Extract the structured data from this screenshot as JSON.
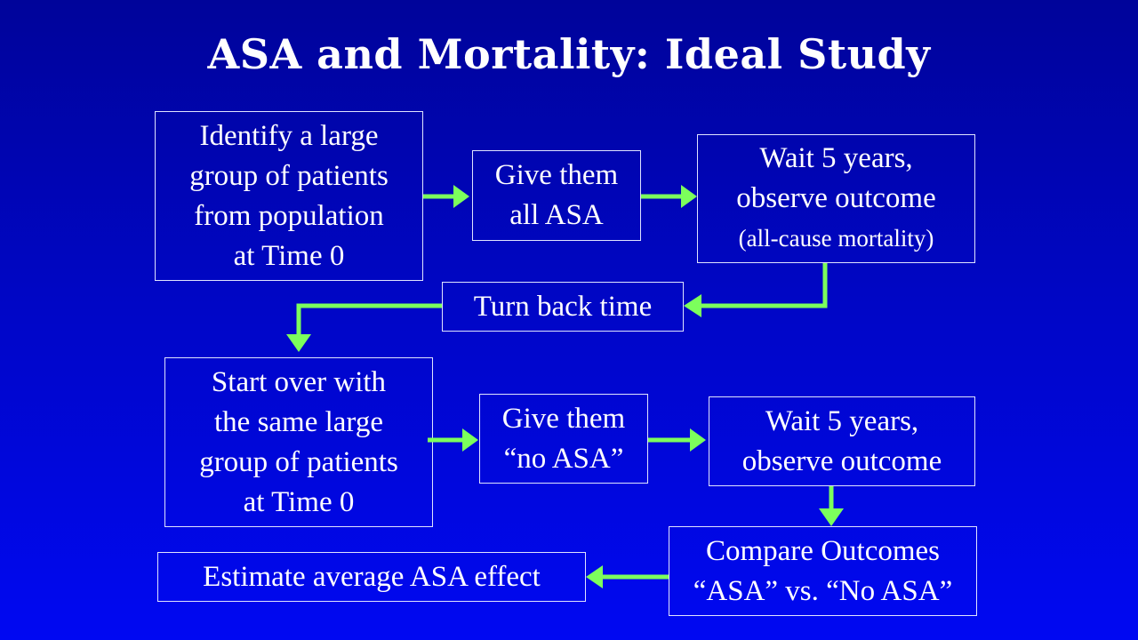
{
  "title": "ASA and Mortality: Ideal Study",
  "colors": {
    "background_top": "#00049a",
    "background_bottom": "#0008f2",
    "arrow": "#7cff5c",
    "box_border": "#dfe4ff",
    "text": "#ffffff"
  },
  "boxes": {
    "identify": [
      "Identify a large",
      "group of patients",
      "from population",
      "at Time 0"
    ],
    "give_asa": [
      "Give them",
      "all ASA"
    ],
    "wait1": [
      "Wait 5 years,",
      "observe outcome",
      "(all-cause mortality)"
    ],
    "turn_back": [
      "Turn back time"
    ],
    "start_over": [
      "Start over with",
      "the same large",
      "group of patients",
      "at Time 0"
    ],
    "give_no_asa": [
      "Give them",
      "“no ASA”"
    ],
    "wait2": [
      "Wait 5 years,",
      "observe outcome"
    ],
    "compare": [
      "Compare Outcomes",
      "“ASA” vs. “No ASA”"
    ],
    "estimate": [
      "Estimate average ASA effect"
    ]
  }
}
